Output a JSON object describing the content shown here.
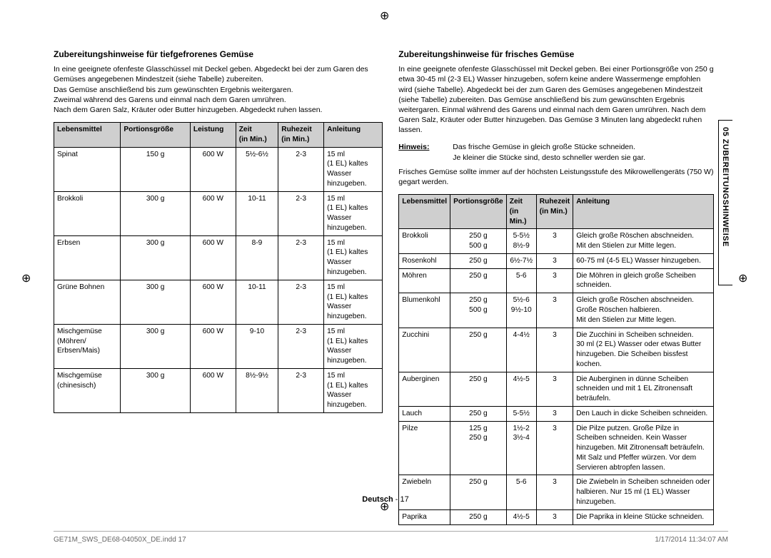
{
  "cropGlyph": "⊕",
  "sideTab": "05  ZUBEREITUNGSHINWEISE",
  "left": {
    "heading": "Zubereitungshinweise für tiefgefrorenes Gemüse",
    "intro": "In eine geeignete ofenfeste Glasschüssel mit Deckel geben. Abgedeckt bei der zum Garen des Gemüses angegebenen Mindestzeit (siehe Tabelle) zubereiten.\nDas Gemüse anschließend bis zum gewünschten Ergebnis weitergaren.\nZweimal während des Garens und einmal nach dem Garen umrühren.\nNach dem Garen Salz, Kräuter oder Butter hinzugeben. Abgedeckt ruhen lassen.",
    "columns": [
      "Lebensmittel",
      "Portionsgröße",
      "Leistung",
      "Zeit\n(in Min.)",
      "Ruhezeit\n(in Min.)",
      "Anleitung"
    ],
    "rows": [
      [
        "Spinat",
        "150 g",
        "600 W",
        "5½-6½",
        "2-3",
        "15 ml\n(1 EL) kaltes\nWasser\nhinzugeben."
      ],
      [
        "Brokkoli",
        "300 g",
        "600 W",
        "10-11",
        "2-3",
        "15 ml\n(1 EL) kaltes\nWasser\nhinzugeben."
      ],
      [
        "Erbsen",
        "300 g",
        "600 W",
        "8-9",
        "2-3",
        "15 ml\n(1 EL) kaltes\nWasser\nhinzugeben."
      ],
      [
        "Grüne Bohnen",
        "300 g",
        "600 W",
        "10-11",
        "2-3",
        "15 ml\n(1 EL) kaltes\nWasser\nhinzugeben."
      ],
      [
        "Mischgemüse\n(Möhren/\nErbsen/Mais)",
        "300 g",
        "600 W",
        "9-10",
        "2-3",
        "15 ml\n(1 EL) kaltes\nWasser\nhinzugeben."
      ],
      [
        "Mischgemüse\n(chinesisch)",
        "300 g",
        "600 W",
        "8½-9½",
        "2-3",
        "15 ml\n(1 EL) kaltes\nWasser\nhinzugeben."
      ]
    ]
  },
  "right": {
    "heading": "Zubereitungshinweise für frisches Gemüse",
    "intro": "In eine geeignete ofenfeste Glasschüssel mit Deckel geben. Bei einer Portionsgröße von 250 g etwa 30-45 ml (2-3 EL) Wasser hinzugeben, sofern keine andere Wassermenge empfohlen wird (siehe Tabelle). Abgedeckt bei der zum Garen des Gemüses angegebenen Mindestzeit (siehe Tabelle) zubereiten. Das Gemüse anschließend bis zum gewünschten Ergebnis weitergaren. Einmal während des Garens und einmal nach dem Garen umrühren. Nach dem Garen Salz, Kräuter oder Butter hinzugeben. Das Gemüse 3 Minuten lang abgedeckt ruhen lassen.",
    "hinweisLabel": "Hinweis:",
    "hinweisText": "Das frische Gemüse in gleich große Stücke schneiden.\nJe kleiner die Stücke sind, desto schneller werden sie gar.",
    "note2": "Frisches Gemüse sollte immer auf der höchsten Leistungsstufe des Mikrowellengeräts (750 W) gegart werden.",
    "columns": [
      "Lebensmittel",
      "Portionsgröße",
      "Zeit\n(in Min.)",
      "Ruhezeit\n(in Min.)",
      "Anleitung"
    ],
    "rows": [
      [
        "Brokkoli",
        "250 g\n500 g",
        "5-5½\n8½-9",
        "3",
        "Gleich große Röschen abschneiden.\nMit den Stielen zur Mitte legen."
      ],
      [
        "Rosenkohl",
        "250 g",
        "6½-7½",
        "3",
        "60-75 ml (4-5 EL) Wasser hinzugeben."
      ],
      [
        "Möhren",
        "250 g",
        "5-6",
        "3",
        "Die Möhren in gleich große Scheiben schneiden."
      ],
      [
        "Blumenkohl",
        "250 g\n500 g",
        "5½-6\n9½-10",
        "3",
        "Gleich große Röschen abschneiden.\nGroße Röschen halbieren.\nMit den Stielen zur Mitte legen."
      ],
      [
        "Zucchini",
        "250 g",
        "4-4½",
        "3",
        "Die Zucchini in Scheiben schneiden.\n30 ml (2 EL) Wasser oder etwas Butter hinzugeben. Die Scheiben bissfest kochen."
      ],
      [
        "Auberginen",
        "250 g",
        "4½-5",
        "3",
        "Die Auberginen in dünne Scheiben schneiden und mit 1 EL Zitronensaft beträufeln."
      ],
      [
        "Lauch",
        "250 g",
        "5-5½",
        "3",
        "Den Lauch in dicke Scheiben schneiden."
      ],
      [
        "Pilze",
        "125 g\n250 g",
        "1½-2\n3½-4",
        "3",
        "Die Pilze putzen. Große Pilze in Scheiben schneiden. Kein Wasser hinzugeben. Mit Zitronensaft beträufeln. Mit Salz und Pfeffer würzen. Vor dem Servieren abtropfen lassen."
      ],
      [
        "Zwiebeln",
        "250 g",
        "5-6",
        "3",
        "Die Zwiebeln in Scheiben schneiden oder halbieren. Nur 15 ml (1 EL) Wasser hinzugeben."
      ],
      [
        "Paprika",
        "250 g",
        "4½-5",
        "3",
        "Die Paprika in kleine Stücke schneiden."
      ]
    ]
  },
  "footerCenter": {
    "label": "Deutsch",
    "page": "17"
  },
  "docFooter": {
    "file": "GE71M_SWS_DE68-04050X_DE.indd   17",
    "stamp": "1/17/2014   11:34:07 AM"
  }
}
